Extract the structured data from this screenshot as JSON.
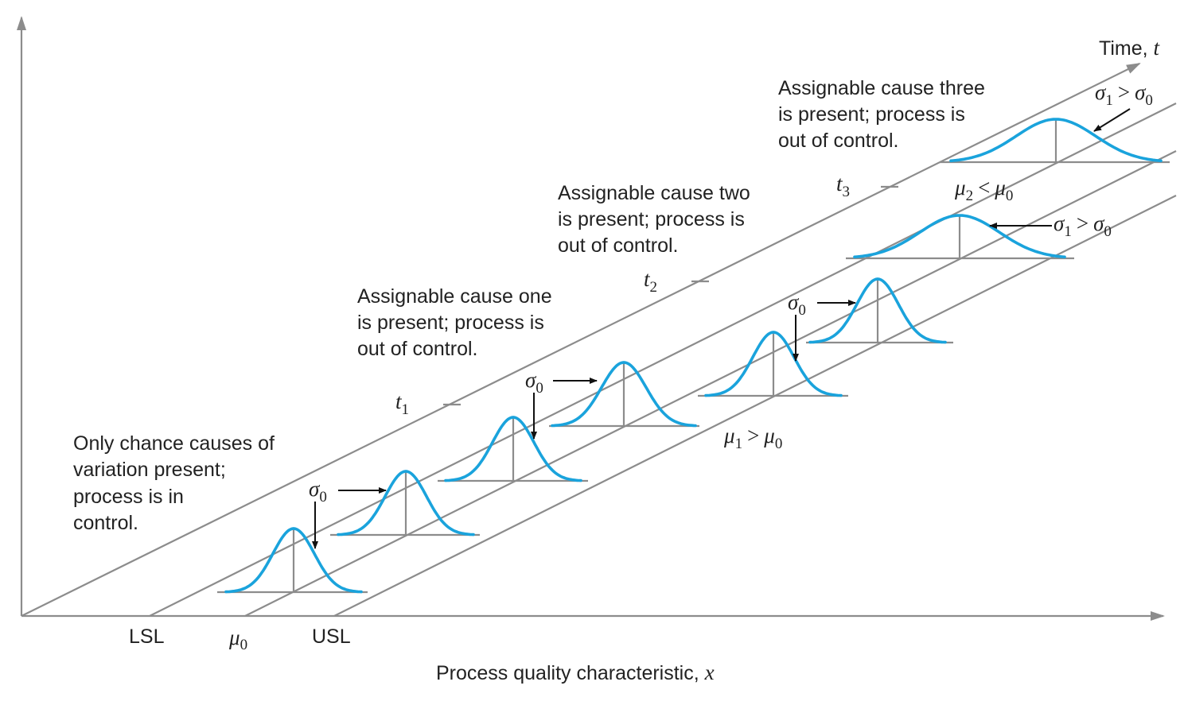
{
  "axes": {
    "x_label": "Process quality characteristic,",
    "x_symbol": "x",
    "t_label": "Time,",
    "t_symbol": "t"
  },
  "base_labels": {
    "lsl": "LSL",
    "mu0_main": "μ",
    "mu0_sub": "0",
    "usl": "USL"
  },
  "time_ticks": [
    {
      "main": "t",
      "sub": "1"
    },
    {
      "main": "t",
      "sub": "2"
    },
    {
      "main": "t",
      "sub": "3"
    }
  ],
  "annotations": {
    "in_control": [
      "Only chance causes of",
      "variation present;",
      "process is in",
      "control."
    ],
    "cause_one": [
      "Assignable cause one",
      "is present; process is",
      "out of control."
    ],
    "cause_two": [
      "Assignable cause two",
      "is present; process is",
      "out of control."
    ],
    "cause_three": [
      "Assignable cause three",
      "is present; process is",
      "out of control."
    ]
  },
  "symbols": {
    "sigma0": {
      "main": "σ",
      "sub": "0"
    },
    "mean_shift_up": {
      "a": "μ",
      "a_sub": "1",
      "op": ">",
      "b": "μ",
      "b_sub": "0"
    },
    "mean_shift_down": {
      "a": "μ",
      "a_sub": "2",
      "op": "<",
      "b": "μ",
      "b_sub": "0"
    },
    "sigma_increase": {
      "a": "σ",
      "a_sub": "1",
      "op": ">",
      "b": "σ",
      "b_sub": "0"
    }
  },
  "colors": {
    "curve": "#1aa3dc",
    "lines": "#8c8c8c",
    "text": "#222222"
  }
}
